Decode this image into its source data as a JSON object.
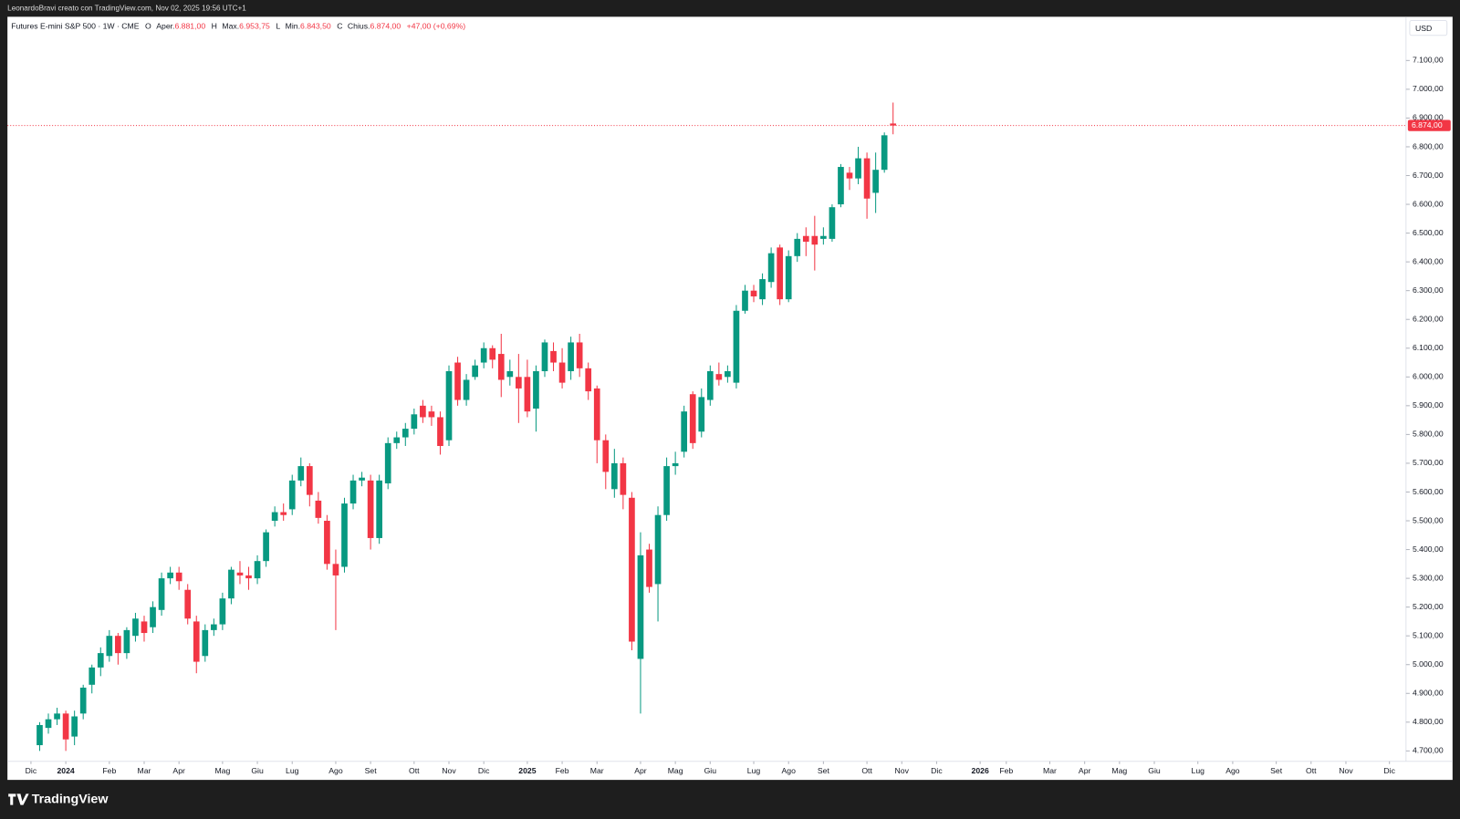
{
  "top_bar": "LeonardoBravi creato con TradingView.com, Nov 02, 2025 19:56 UTC+1",
  "footer": "TradingView",
  "header": {
    "symbol": "Futures E-mini S&P 500 · 1W · CME",
    "o": "O",
    "o_label": "Aper.",
    "o_value": "6.881,00",
    "h": "H",
    "h_label": "Max.",
    "h_value": "6.953,75",
    "l": "L",
    "l_label": "Min.",
    "l_value": "6.843,50",
    "c": "C",
    "c_label": "Chius.",
    "c_value": "6.874,00",
    "change": "+47,00 (+0,69%)"
  },
  "chart_data": {
    "type": "candlestick",
    "currency": "USD",
    "up_color": "#089981",
    "down_color": "#f23645",
    "last_price": {
      "value": 6874,
      "label": "6.874,00"
    },
    "xlim": [
      -3.7,
      156.9
    ],
    "ylim": [
      4664,
      7252
    ],
    "x": [
      0,
      1,
      2,
      3,
      4,
      5,
      6,
      7,
      8,
      9,
      10,
      11,
      12,
      13,
      14,
      15,
      16,
      17,
      18,
      19,
      20,
      21,
      22,
      23,
      24,
      25,
      26,
      27,
      28,
      29,
      30,
      31,
      32,
      33,
      34,
      35,
      36,
      37,
      38,
      39,
      40,
      41,
      42,
      43,
      44,
      45,
      46,
      47,
      48,
      49,
      50,
      51,
      52,
      53,
      54,
      55,
      56,
      57,
      58,
      59,
      60,
      61,
      62,
      63,
      64,
      65,
      66,
      67,
      68,
      69,
      70,
      71,
      72,
      73,
      74,
      75,
      76,
      77,
      78,
      79,
      80,
      81,
      82,
      83,
      84,
      85,
      86,
      87,
      88,
      89,
      90,
      91,
      92,
      93,
      94,
      95,
      96,
      97,
      98
    ],
    "open": [
      4720,
      4780,
      4810,
      4830,
      4750,
      4830,
      4930,
      4990,
      5030,
      5100,
      5040,
      5100,
      5150,
      5130,
      5190,
      5300,
      5320,
      5260,
      5150,
      5030,
      5120,
      5140,
      5230,
      5320,
      5310,
      5300,
      5360,
      5500,
      5530,
      5540,
      5640,
      5690,
      5570,
      5500,
      5350,
      5340,
      5560,
      5640,
      5640,
      5440,
      5630,
      5770,
      5790,
      5820,
      5900,
      5880,
      5860,
      5780,
      6050,
      5920,
      6000,
      6050,
      6100,
      6080,
      6000,
      6000,
      6000,
      5890,
      6020,
      6090,
      6050,
      6020,
      6120,
      6030,
      5960,
      5780,
      5610,
      5700,
      5580,
      5020,
      5400,
      5280,
      5520,
      5690,
      5740,
      5940,
      5810,
      5920,
      6010,
      6000,
      5980,
      6230,
      6300,
      6270,
      6330,
      6450,
      6270,
      6420,
      6490,
      6490,
      6480,
      6480,
      6600,
      6710,
      6690,
      6760,
      6640,
      6720,
      6881
    ],
    "high": [
      4800,
      4830,
      4850,
      4840,
      4840,
      4930,
      5000,
      5060,
      5120,
      5110,
      5130,
      5180,
      5170,
      5220,
      5320,
      5340,
      5340,
      5280,
      5170,
      5140,
      5160,
      5250,
      5340,
      5360,
      5340,
      5380,
      5470,
      5550,
      5560,
      5660,
      5720,
      5700,
      5600,
      5520,
      5400,
      5580,
      5660,
      5670,
      5660,
      5660,
      5790,
      5810,
      5840,
      5890,
      5920,
      5900,
      5880,
      6040,
      6070,
      6010,
      6060,
      6120,
      6110,
      6150,
      6060,
      6080,
      6060,
      6040,
      6130,
      6120,
      6100,
      6140,
      6150,
      6050,
      5970,
      5800,
      5750,
      5720,
      5600,
      5460,
      5420,
      5550,
      5720,
      5740,
      5900,
      5950,
      5960,
      6040,
      6050,
      6040,
      6250,
      6320,
      6320,
      6360,
      6450,
      6460,
      6440,
      6500,
      6520,
      6560,
      6520,
      6600,
      6740,
      6730,
      6800,
      6780,
      6780,
      6850,
      6953.75
    ],
    "low": [
      4700,
      4760,
      4790,
      4700,
      4720,
      4810,
      4900,
      4960,
      5010,
      5000,
      5020,
      5080,
      5080,
      5110,
      5170,
      5280,
      5260,
      5140,
      4970,
      5010,
      5100,
      5120,
      5210,
      5280,
      5260,
      5280,
      5340,
      5480,
      5500,
      5520,
      5620,
      5550,
      5490,
      5330,
      5120,
      5320,
      5540,
      5620,
      5400,
      5420,
      5610,
      5750,
      5760,
      5800,
      5840,
      5830,
      5730,
      5760,
      5900,
      5900,
      5990,
      6030,
      6030,
      5930,
      5970,
      5840,
      5860,
      5810,
      6000,
      6020,
      5960,
      5990,
      6000,
      5920,
      5700,
      5610,
      5580,
      5540,
      5050,
      4830,
      5250,
      5150,
      5500,
      5660,
      5720,
      5750,
      5790,
      5900,
      5970,
      5980,
      5960,
      6220,
      6260,
      6250,
      6310,
      6250,
      6260,
      6400,
      6420,
      6370,
      6460,
      6470,
      6590,
      6650,
      6670,
      6550,
      6570,
      6710,
      6843.5
    ],
    "close": [
      4790,
      4810,
      4830,
      4740,
      4820,
      4920,
      4990,
      5040,
      5100,
      5040,
      5120,
      5160,
      5110,
      5200,
      5300,
      5320,
      5290,
      5160,
      5010,
      5120,
      5140,
      5230,
      5330,
      5310,
      5300,
      5360,
      5460,
      5530,
      5520,
      5640,
      5690,
      5590,
      5510,
      5350,
      5310,
      5560,
      5640,
      5650,
      5440,
      5640,
      5770,
      5790,
      5820,
      5870,
      5860,
      5860,
      5760,
      6020,
      5920,
      5990,
      6040,
      6100,
      6060,
      5990,
      6020,
      5960,
      5880,
      6020,
      6120,
      6050,
      5980,
      6120,
      6030,
      5950,
      5780,
      5670,
      5700,
      5590,
      5080,
      5380,
      5270,
      5520,
      5690,
      5700,
      5880,
      5770,
      5930,
      6020,
      5990,
      6020,
      6230,
      6300,
      6280,
      6340,
      6430,
      6270,
      6420,
      6480,
      6470,
      6460,
      6490,
      6590,
      6730,
      6690,
      6760,
      6620,
      6720,
      6840,
      6874
    ],
    "yticks": [
      {
        "value": 4700,
        "label": "4.700,00"
      },
      {
        "value": 4800,
        "label": "4.800,00"
      },
      {
        "value": 4900,
        "label": "4.900,00"
      },
      {
        "value": 5000,
        "label": "5.000,00"
      },
      {
        "value": 5100,
        "label": "5.100,00"
      },
      {
        "value": 5200,
        "label": "5.200,00"
      },
      {
        "value": 5300,
        "label": "5.300,00"
      },
      {
        "value": 5400,
        "label": "5.400,00"
      },
      {
        "value": 5500,
        "label": "5.500,00"
      },
      {
        "value": 5600,
        "label": "5.600,00"
      },
      {
        "value": 5700,
        "label": "5.700,00"
      },
      {
        "value": 5800,
        "label": "5.800,00"
      },
      {
        "value": 5900,
        "label": "5.900,00"
      },
      {
        "value": 6000,
        "label": "6.000,00"
      },
      {
        "value": 6100,
        "label": "6.100,00"
      },
      {
        "value": 6200,
        "label": "6.200,00"
      },
      {
        "value": 6300,
        "label": "6.300,00"
      },
      {
        "value": 6400,
        "label": "6.400,00"
      },
      {
        "value": 6500,
        "label": "6.500,00"
      },
      {
        "value": 6600,
        "label": "6.600,00"
      },
      {
        "value": 6700,
        "label": "6.700,00"
      },
      {
        "value": 6800,
        "label": "6.800,00"
      },
      {
        "value": 6900,
        "label": "6.900,00"
      },
      {
        "value": 7000,
        "label": "7.000,00"
      },
      {
        "value": 7100,
        "label": "7.100,00"
      }
    ],
    "xticks": [
      {
        "value": -1,
        "label": "Dic"
      },
      {
        "value": 3,
        "label": "2024"
      },
      {
        "value": 8,
        "label": "Feb"
      },
      {
        "value": 12,
        "label": "Mar"
      },
      {
        "value": 16,
        "label": "Apr"
      },
      {
        "value": 21,
        "label": "Mag"
      },
      {
        "value": 25,
        "label": "Giu"
      },
      {
        "value": 29,
        "label": "Lug"
      },
      {
        "value": 34,
        "label": "Ago"
      },
      {
        "value": 38,
        "label": "Set"
      },
      {
        "value": 43,
        "label": "Ott"
      },
      {
        "value": 47,
        "label": "Nov"
      },
      {
        "value": 51,
        "label": "Dic"
      },
      {
        "value": 56,
        "label": "2025"
      },
      {
        "value": 60,
        "label": "Feb"
      },
      {
        "value": 64,
        "label": "Mar"
      },
      {
        "value": 69,
        "label": "Apr"
      },
      {
        "value": 73,
        "label": "Mag"
      },
      {
        "value": 77,
        "label": "Giu"
      },
      {
        "value": 82,
        "label": "Lug"
      },
      {
        "value": 86,
        "label": "Ago"
      },
      {
        "value": 90,
        "label": "Set"
      },
      {
        "value": 95,
        "label": "Ott"
      },
      {
        "value": 99,
        "label": "Nov"
      },
      {
        "value": 103,
        "label": "Dic"
      },
      {
        "value": 108,
        "label": "2026"
      },
      {
        "value": 111,
        "label": "Feb"
      },
      {
        "value": 116,
        "label": "Mar"
      },
      {
        "value": 120,
        "label": "Apr"
      },
      {
        "value": 124,
        "label": "Mag"
      },
      {
        "value": 128,
        "label": "Giu"
      },
      {
        "value": 133,
        "label": "Lug"
      },
      {
        "value": 137,
        "label": "Ago"
      },
      {
        "value": 142,
        "label": "Set"
      },
      {
        "value": 146,
        "label": "Ott"
      },
      {
        "value": 150,
        "label": "Nov"
      },
      {
        "value": 155,
        "label": "Dic"
      }
    ]
  }
}
